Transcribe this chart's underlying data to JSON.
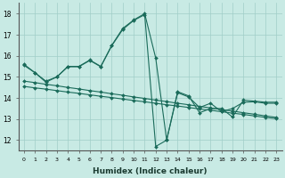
{
  "bg_color": "#c8eae4",
  "grid_color": "#a0cec8",
  "line_color": "#1a6b5a",
  "xlabel": "Humidex (Indice chaleur)",
  "xlim": [
    -0.5,
    23.5
  ],
  "ylim": [
    11.5,
    18.5
  ],
  "yticks": [
    12,
    13,
    14,
    15,
    16,
    17,
    18
  ],
  "xtick_labels": [
    "0",
    "1",
    "2",
    "3",
    "4",
    "5",
    "6",
    "7",
    "8",
    "9",
    "10",
    "11",
    "12",
    "13",
    "14",
    "15",
    "16",
    "17",
    "18",
    "19",
    "20",
    "21",
    "22",
    "23"
  ],
  "series1_x": [
    0,
    1,
    2,
    3,
    4,
    5,
    6,
    7,
    8,
    9,
    10,
    11,
    12,
    13,
    14,
    15,
    16,
    17,
    18,
    19,
    20,
    21,
    22,
    23
  ],
  "series1_y": [
    15.6,
    15.2,
    14.8,
    15.0,
    15.5,
    15.5,
    15.8,
    15.5,
    16.5,
    17.3,
    17.7,
    18.0,
    15.9,
    12.0,
    14.3,
    14.1,
    13.3,
    13.5,
    13.5,
    13.1,
    13.9,
    13.85,
    13.8,
    13.8
  ],
  "series2_x": [
    0,
    1,
    2,
    3,
    4,
    5,
    6,
    7,
    8,
    9,
    10,
    11,
    12,
    13,
    14,
    15,
    16,
    17,
    18,
    19,
    20,
    21,
    22,
    23
  ],
  "series2_y": [
    14.8,
    14.73,
    14.65,
    14.58,
    14.5,
    14.43,
    14.35,
    14.28,
    14.2,
    14.13,
    14.05,
    13.98,
    13.9,
    13.83,
    13.75,
    13.68,
    13.6,
    13.53,
    13.45,
    13.38,
    13.3,
    13.23,
    13.15,
    13.08
  ],
  "series3_x": [
    0,
    1,
    2,
    3,
    4,
    5,
    6,
    7,
    8,
    9,
    10,
    11,
    12,
    13,
    14,
    15,
    16,
    17,
    18,
    19,
    20,
    21,
    22,
    23
  ],
  "series3_y": [
    14.55,
    14.48,
    14.42,
    14.35,
    14.28,
    14.22,
    14.15,
    14.08,
    14.02,
    13.95,
    13.88,
    13.82,
    13.75,
    13.68,
    13.62,
    13.55,
    13.48,
    13.42,
    13.35,
    13.28,
    13.22,
    13.15,
    13.08,
    13.02
  ],
  "series4_x": [
    0,
    1,
    2,
    3,
    4,
    5,
    6,
    7,
    8,
    9,
    10,
    11,
    12,
    13,
    14,
    15,
    16,
    17,
    18,
    19,
    20,
    21,
    22,
    23
  ],
  "series4_y": [
    15.55,
    15.2,
    14.75,
    15.0,
    15.48,
    15.48,
    15.78,
    15.48,
    16.48,
    17.25,
    17.68,
    17.95,
    11.7,
    12.0,
    14.25,
    14.05,
    13.55,
    13.75,
    13.35,
    13.5,
    13.8,
    13.82,
    13.75,
    13.75
  ]
}
